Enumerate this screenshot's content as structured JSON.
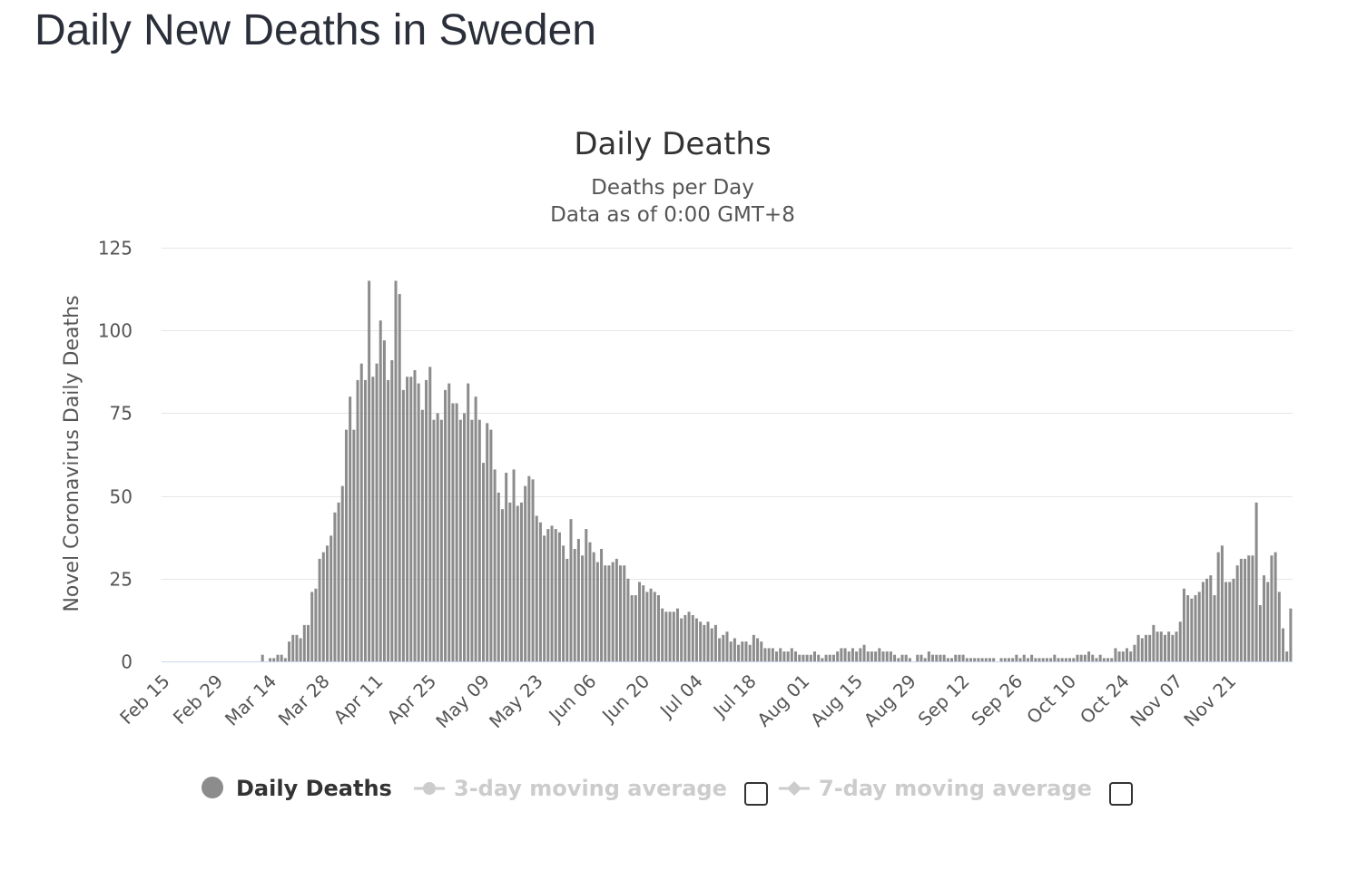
{
  "page": {
    "title": "Daily New Deaths in Sweden"
  },
  "colors": {
    "bar": "#8c8c8c",
    "grid": "#e6e6e6",
    "legend_active": "#333333",
    "legend_inactive": "#cccccc"
  },
  "legend": [
    {
      "label": "Daily Deaths",
      "active": true,
      "marker": "circle",
      "has_checkbox": false
    },
    {
      "label": "3-day moving average",
      "active": false,
      "marker": "line-circle",
      "has_checkbox": true
    },
    {
      "label": "7-day moving average",
      "active": false,
      "marker": "line-diamond",
      "has_checkbox": true
    }
  ],
  "chart_data": {
    "type": "bar",
    "title": "Daily Deaths",
    "subtitle_lines": [
      "Deaths per Day",
      "Data as of 0:00 GMT+8"
    ],
    "xlabel": "",
    "ylabel": "Novel Coronavirus Daily Deaths",
    "ylim": [
      0,
      125
    ],
    "yticks": [
      0,
      25,
      50,
      75,
      100,
      125
    ],
    "grid": true,
    "legend_position": "bottom",
    "x_start": "2020-02-15",
    "x_tick_labels": [
      "Feb 15",
      "Feb 29",
      "Mar 14",
      "Mar 28",
      "Apr 11",
      "Apr 25",
      "May 09",
      "May 23",
      "Jun 06",
      "Jun 20",
      "Jul 04",
      "Jul 18",
      "Aug 01",
      "Aug 15",
      "Aug 29",
      "Sep 12",
      "Sep 26",
      "Oct 10",
      "Oct 24",
      "Nov 07",
      "Nov 21"
    ],
    "series": [
      {
        "name": "Daily Deaths",
        "values": [
          0,
          0,
          0,
          0,
          0,
          0,
          0,
          0,
          0,
          0,
          0,
          0,
          0,
          0,
          0,
          0,
          0,
          0,
          0,
          0,
          0,
          0,
          0,
          0,
          0,
          0,
          2,
          0,
          1,
          1,
          2,
          2,
          1,
          6,
          8,
          8,
          7,
          11,
          11,
          21,
          22,
          31,
          33,
          35,
          38,
          45,
          48,
          53,
          70,
          80,
          70,
          85,
          90,
          85,
          115,
          86,
          90,
          103,
          97,
          85,
          91,
          115,
          111,
          82,
          86,
          86,
          88,
          84,
          76,
          85,
          89,
          73,
          75,
          73,
          82,
          84,
          78,
          78,
          73,
          75,
          84,
          73,
          80,
          73,
          60,
          72,
          70,
          58,
          51,
          46,
          57,
          48,
          58,
          47,
          48,
          53,
          56,
          55,
          44,
          42,
          38,
          40,
          41,
          40,
          39,
          35,
          31,
          43,
          34,
          37,
          32,
          40,
          36,
          33,
          30,
          34,
          29,
          29,
          30,
          31,
          29,
          29,
          25,
          20,
          20,
          24,
          23,
          21,
          22,
          21,
          20,
          16,
          15,
          15,
          15,
          16,
          13,
          14,
          15,
          14,
          13,
          12,
          11,
          12,
          10,
          11,
          7,
          8,
          9,
          6,
          7,
          5,
          6,
          6,
          5,
          8,
          7,
          6,
          4,
          4,
          4,
          3,
          4,
          3,
          3,
          4,
          3,
          2,
          2,
          2,
          2,
          3,
          2,
          1,
          2,
          2,
          2,
          3,
          4,
          4,
          3,
          4,
          3,
          4,
          5,
          3,
          3,
          3,
          4,
          3,
          3,
          3,
          2,
          1,
          2,
          2,
          1,
          0,
          2,
          2,
          1,
          3,
          2,
          2,
          2,
          2,
          1,
          1,
          2,
          2,
          2,
          1,
          1,
          1,
          1,
          1,
          1,
          1,
          1,
          0,
          1,
          1,
          1,
          1,
          2,
          1,
          2,
          1,
          2,
          1,
          1,
          1,
          1,
          1,
          2,
          1,
          1,
          1,
          1,
          1,
          2,
          2,
          2,
          3,
          2,
          1,
          2,
          1,
          1,
          1,
          4,
          3,
          3,
          4,
          3,
          5,
          8,
          7,
          8,
          8,
          11,
          9,
          9,
          8,
          9,
          8,
          9,
          12,
          22,
          20,
          19,
          20,
          21,
          24,
          25,
          26,
          20,
          33,
          35,
          24,
          24,
          25,
          29,
          31,
          31,
          32,
          32,
          48,
          17,
          26,
          24,
          32,
          33,
          21,
          10,
          3,
          16
        ]
      }
    ]
  }
}
